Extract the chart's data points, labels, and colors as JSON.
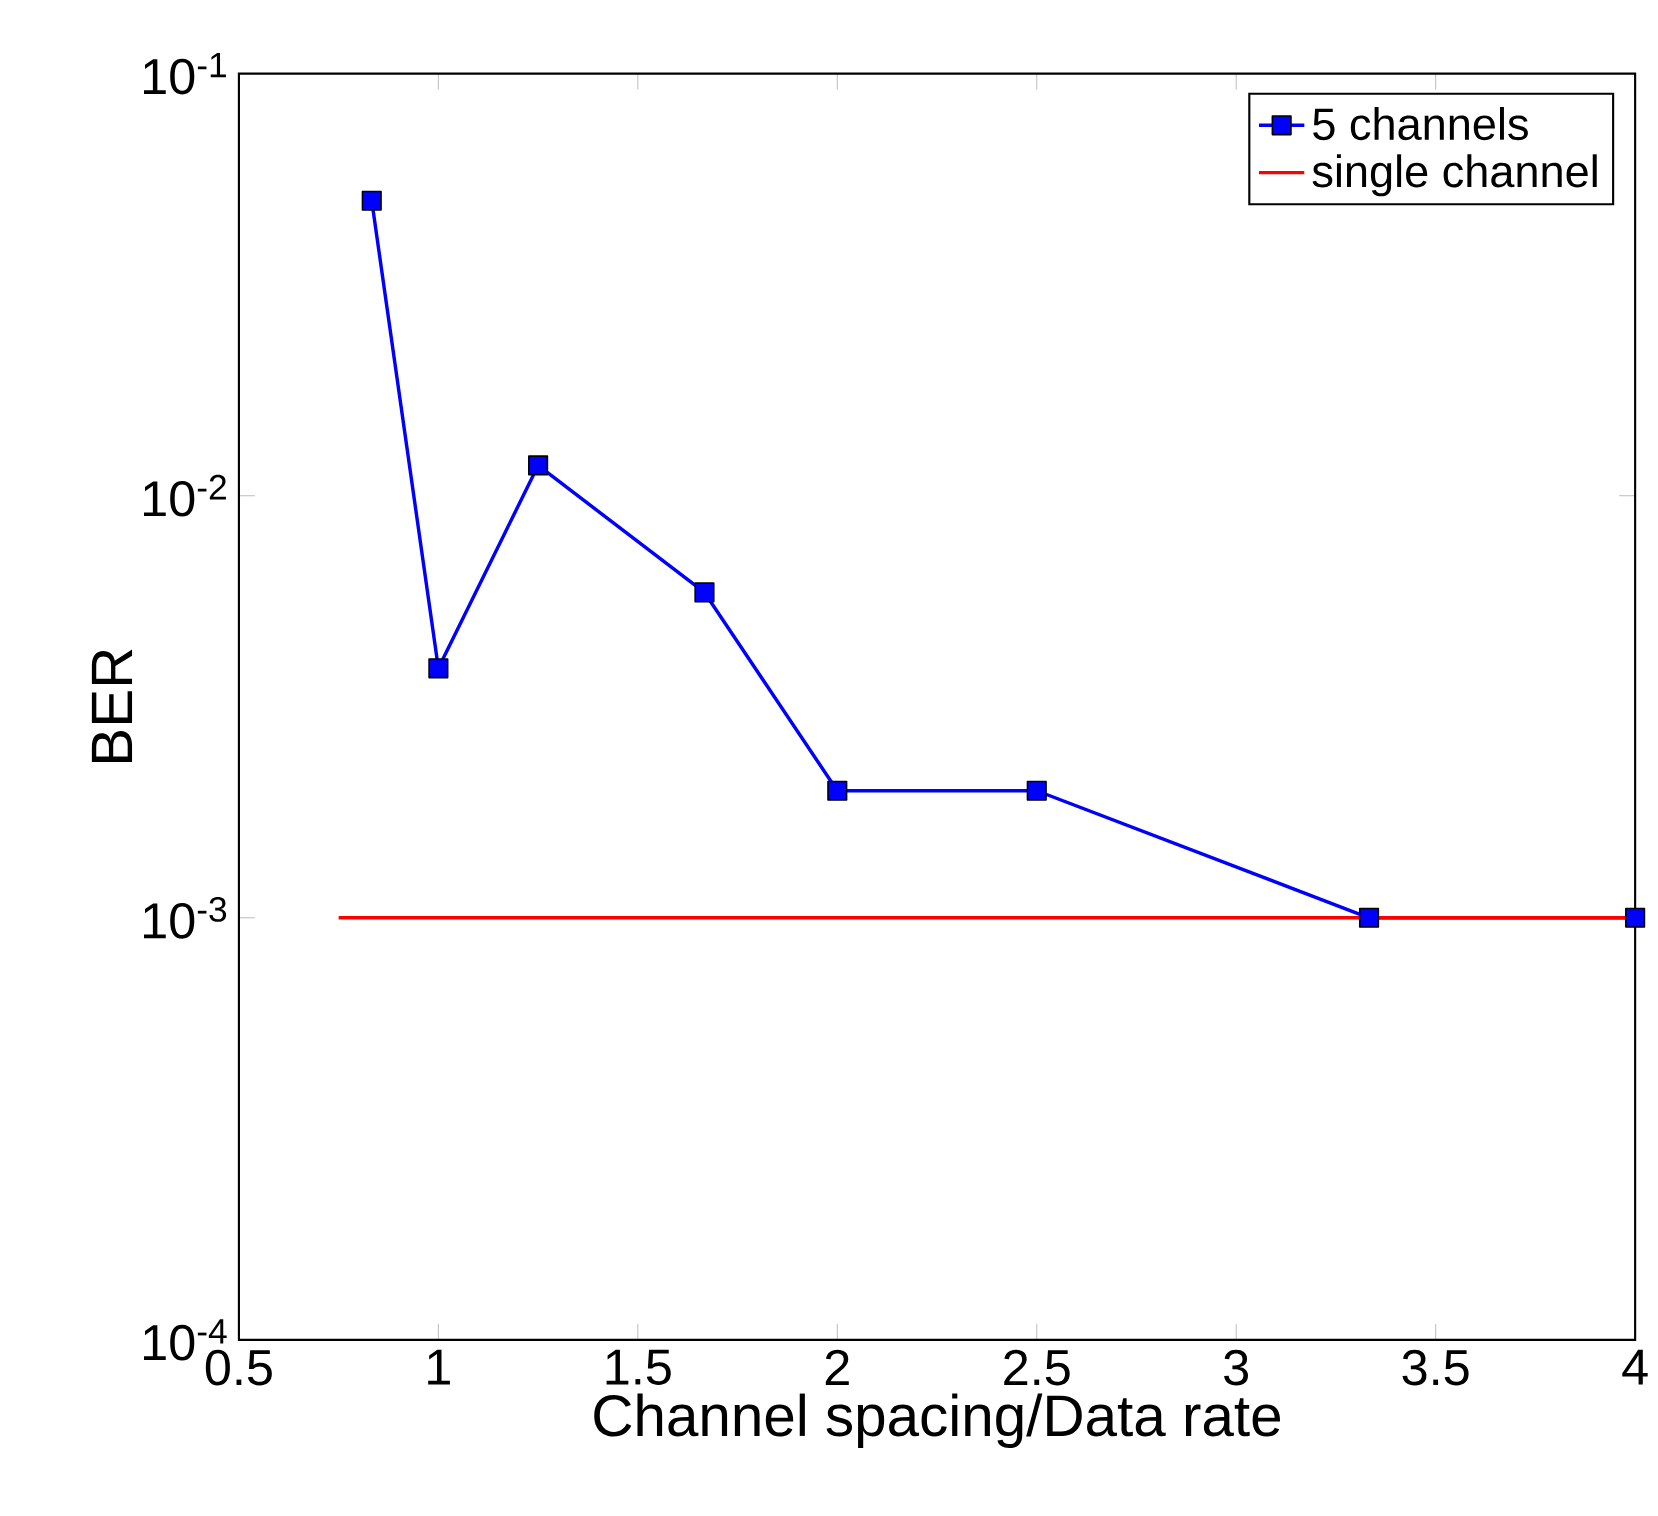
{
  "chart_data": {
    "type": "line",
    "xlabel": "Channel spacing/Data rate",
    "ylabel": "BER",
    "series": [
      {
        "name": "5 channels",
        "color": "#0000ff",
        "marker": "square",
        "x": [
          0.833,
          1,
          1.25,
          1.667,
          2,
          2.5,
          3.333,
          4
        ],
        "values": [
          0.05,
          0.0039,
          0.0118,
          0.0059,
          0.002,
          0.002,
          0.001,
          0.001
        ]
      },
      {
        "name": "single channel",
        "color": "#ff0000",
        "marker": "none",
        "x": [
          0.75,
          4
        ],
        "values": [
          0.001,
          0.001
        ]
      }
    ],
    "log": "y",
    "xlim": [
      0.5,
      4
    ],
    "ylim": [
      0.0001,
      0.1
    ],
    "xticks": [
      0.5,
      1,
      1.5,
      2,
      2.5,
      3,
      3.5,
      4
    ],
    "yticks": [
      {
        "value": 0.0001,
        "label": "10$^{-4}$"
      },
      {
        "value": 0.001,
        "label": "10$^{-3}$"
      },
      {
        "value": 0.01,
        "label": "10$^{-2}$"
      },
      {
        "value": 0.1,
        "label": "10$^{-1}$"
      }
    ],
    "legend": "top right",
    "grid": false,
    "line_style": "solid"
  }
}
